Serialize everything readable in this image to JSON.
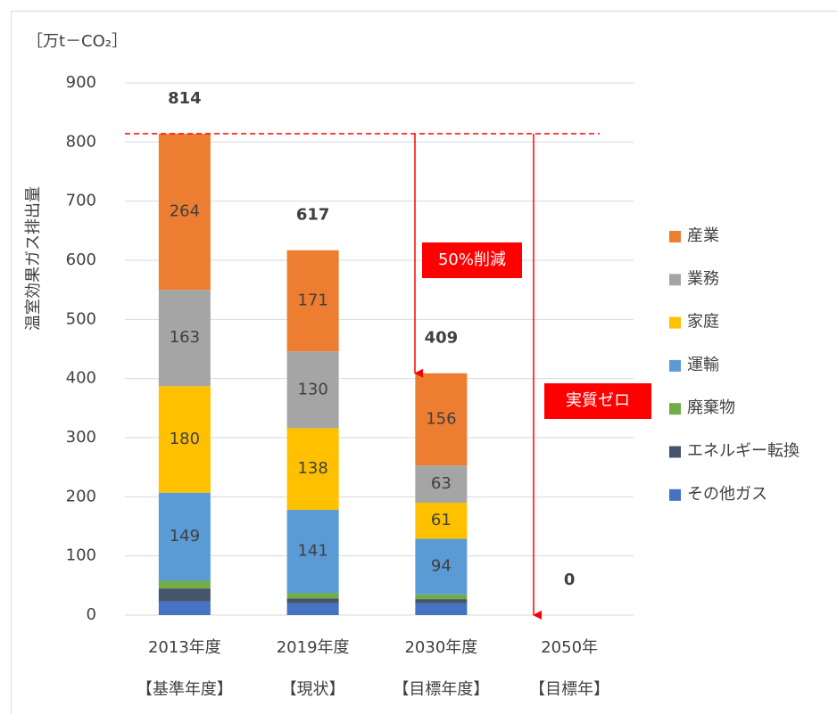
{
  "chart_data": {
    "type": "stacked_bar",
    "y_unit": "［万t－CO₂］",
    "y_label": "温室効果ガス排出量",
    "categories": [
      "2013年度",
      "2019年度",
      "2030年度",
      "2050年"
    ],
    "category_notes": [
      "【基準年度】",
      "【現状】",
      "【目標年度】",
      "【目標年】"
    ],
    "series": [
      {
        "name": "その他ガス",
        "color": "#4472c4",
        "values": [
          23,
          20,
          20,
          0
        ],
        "show_labels": false
      },
      {
        "name": "エネルギー転換",
        "color": "#44546a",
        "values": [
          22,
          8,
          7,
          0
        ],
        "show_labels": false
      },
      {
        "name": "廃棄物",
        "color": "#70ad47",
        "values": [
          13,
          9,
          8,
          0
        ],
        "show_labels": false
      },
      {
        "name": "運輸",
        "color": "#5b9bd5",
        "values": [
          149,
          141,
          94,
          0
        ],
        "show_labels": true
      },
      {
        "name": "家庭",
        "color": "#ffc000",
        "values": [
          180,
          138,
          61,
          0
        ],
        "show_labels": true
      },
      {
        "name": "業務",
        "color": "#a5a5a5",
        "values": [
          163,
          130,
          63,
          0
        ],
        "show_labels": true
      },
      {
        "name": "産業",
        "color": "#ed7d31",
        "values": [
          264,
          171,
          156,
          0
        ],
        "show_labels": true
      }
    ],
    "totals": [
      814,
      617,
      409,
      0
    ],
    "annotations": [
      "50%削減",
      "実質ゼロ"
    ],
    "ylim": [
      0,
      900
    ],
    "yticks": [
      0,
      100,
      200,
      300,
      400,
      500,
      600,
      700,
      800,
      900
    ],
    "grid": true,
    "legend": "right"
  }
}
